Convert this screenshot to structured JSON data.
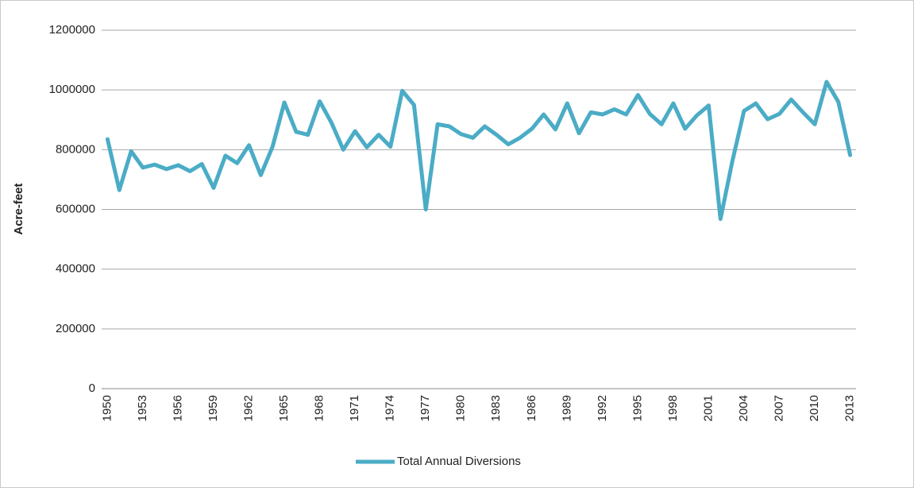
{
  "chart_data": {
    "type": "line",
    "y_label": "Acre-feet",
    "categories": [
      "1950",
      null,
      null,
      "1953",
      null,
      null,
      "1956",
      null,
      null,
      "1959",
      null,
      null,
      "1962",
      null,
      null,
      "1965",
      null,
      null,
      "1968",
      null,
      null,
      "1971",
      null,
      null,
      "1974",
      null,
      null,
      "1977",
      null,
      null,
      "1980",
      null,
      null,
      "1983",
      null,
      null,
      "1986",
      null,
      null,
      "1989",
      null,
      null,
      "1992",
      null,
      null,
      "1995",
      null,
      null,
      "1998",
      null,
      null,
      "2001",
      null,
      null,
      "2004",
      null,
      null,
      "2007",
      null,
      null,
      "2010",
      null,
      null,
      "2013"
    ],
    "series": [
      {
        "name": "Total Annual Diversions",
        "color": "#4bacc6",
        "values": [
          835000,
          665000,
          795000,
          740000,
          750000,
          735000,
          748000,
          728000,
          752000,
          672000,
          780000,
          755000,
          815000,
          715000,
          810000,
          958000,
          860000,
          850000,
          962000,
          890000,
          800000,
          862000,
          808000,
          850000,
          810000,
          997000,
          950000,
          600000,
          885000,
          878000,
          852000,
          840000,
          878000,
          850000,
          818000,
          840000,
          870000,
          918000,
          868000,
          955000,
          855000,
          925000,
          918000,
          935000,
          918000,
          983000,
          920000,
          885000,
          955000,
          870000,
          915000,
          948000,
          568000,
          760000,
          930000,
          955000,
          902000,
          920000,
          968000,
          925000,
          885000,
          1027000,
          960000,
          782000
        ]
      }
    ],
    "ylim": [
      0,
      1200000
    ],
    "yticks": [
      0,
      200000,
      400000,
      600000,
      800000,
      1000000,
      1200000
    ],
    "grid": true,
    "legend": "bottom"
  }
}
